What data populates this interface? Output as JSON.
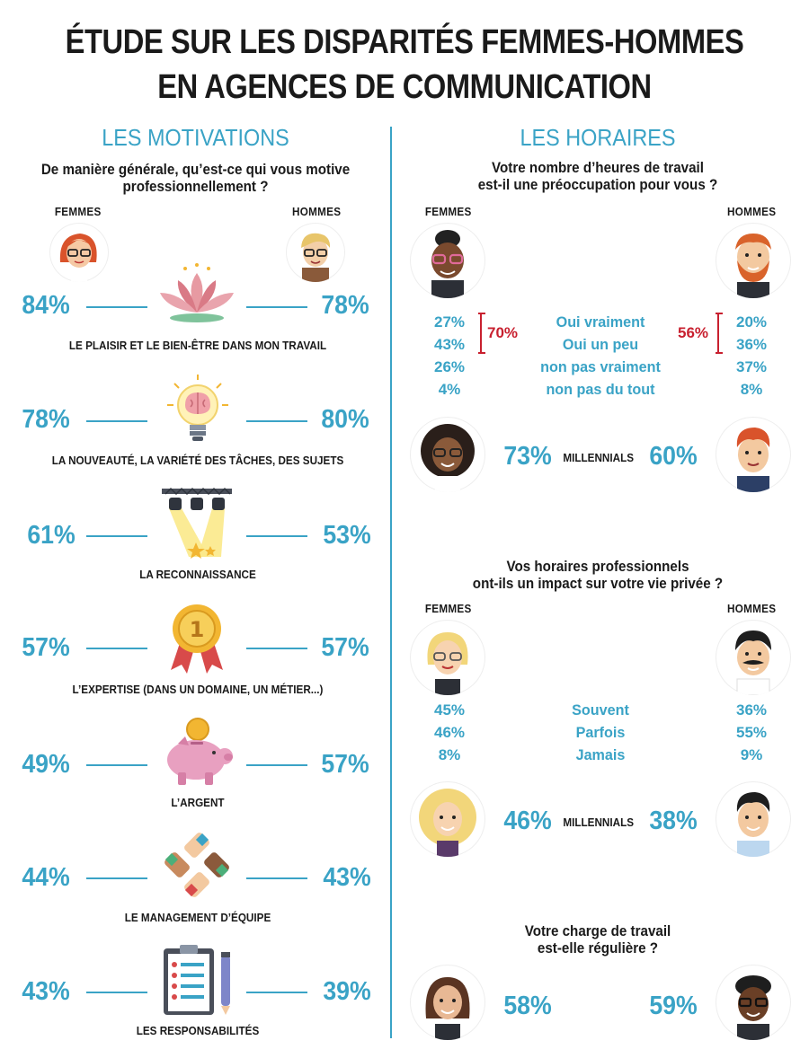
{
  "title": {
    "line1": "ÉTUDE SUR LES DISPARITÉS FEMMES-HOMMES",
    "line2": "EN AGENCES DE COMMUNICATION"
  },
  "colors": {
    "accent": "#3aa3c6",
    "red": "#c8202f",
    "text": "#1a1a1a"
  },
  "motivations": {
    "heading": "LES MOTIVATIONS",
    "question_line1": "De manière générale, qu’est-ce qui vous motive",
    "question_line2": "professionnellement ?",
    "women_label": "FEMMES",
    "men_label": "HOMMES",
    "items": [
      {
        "icon": "lotus-icon",
        "women": "84%",
        "men": "78%",
        "label": "LE PLAISIR ET LE BIEN-ÊTRE DANS MON TRAVAIL"
      },
      {
        "icon": "lightbulb-brain-icon",
        "women": "78%",
        "men": "80%",
        "label": "LA NOUVEAUTÉ, LA VARIÉTÉ DES TÂCHES, DES SUJETS"
      },
      {
        "icon": "spotlight-stars-icon",
        "women": "61%",
        "men": "53%",
        "label": "LA RECONNAISSANCE"
      },
      {
        "icon": "medal-icon",
        "women": "57%",
        "men": "57%",
        "label": "L’EXPERTISE (DANS UN DOMAINE, UN MÉTIER...)"
      },
      {
        "icon": "piggy-bank-icon",
        "women": "49%",
        "men": "57%",
        "label": "L’ARGENT"
      },
      {
        "icon": "handshake-circle-icon",
        "women": "44%",
        "men": "43%",
        "label": "LE MANAGEMENT D’ÉQUIPE"
      },
      {
        "icon": "clipboard-pen-icon",
        "women": "43%",
        "men": "39%",
        "label": "LES RESPONSABILITÉS"
      }
    ]
  },
  "horaires": {
    "heading": "LES HORAIRES",
    "q1": {
      "line1": "Votre nombre d’heures de travail",
      "line2": "est-il une préoccupation pour vous ?",
      "women_label": "FEMMES",
      "men_label": "HOMMES",
      "options": [
        "Oui vraiment",
        "Oui un peu",
        "non pas vraiment",
        "non pas du tout"
      ],
      "women": [
        "27%",
        "43%",
        "26%",
        "4%"
      ],
      "men": [
        "20%",
        "36%",
        "37%",
        "8%"
      ],
      "women_total": "70%",
      "men_total": "56%",
      "millennials_label": "MILLENNIALS",
      "millennials_women": "73%",
      "millennials_men": "60%"
    },
    "q2": {
      "line1": "Vos horaires professionnels",
      "line2": "ont-ils un impact sur votre vie privée ?",
      "women_label": "FEMMES",
      "men_label": "HOMMES",
      "options": [
        "Souvent",
        "Parfois",
        "Jamais"
      ],
      "women": [
        "45%",
        "46%",
        "8%"
      ],
      "men": [
        "36%",
        "55%",
        "9%"
      ],
      "millennials_label": "MILLENNIALS",
      "millennials_women": "46%",
      "millennials_men": "38%"
    },
    "q3": {
      "line1": "Votre charge de travail",
      "line2": "est-elle régulière ?",
      "women": "58%",
      "men": "59%"
    }
  }
}
